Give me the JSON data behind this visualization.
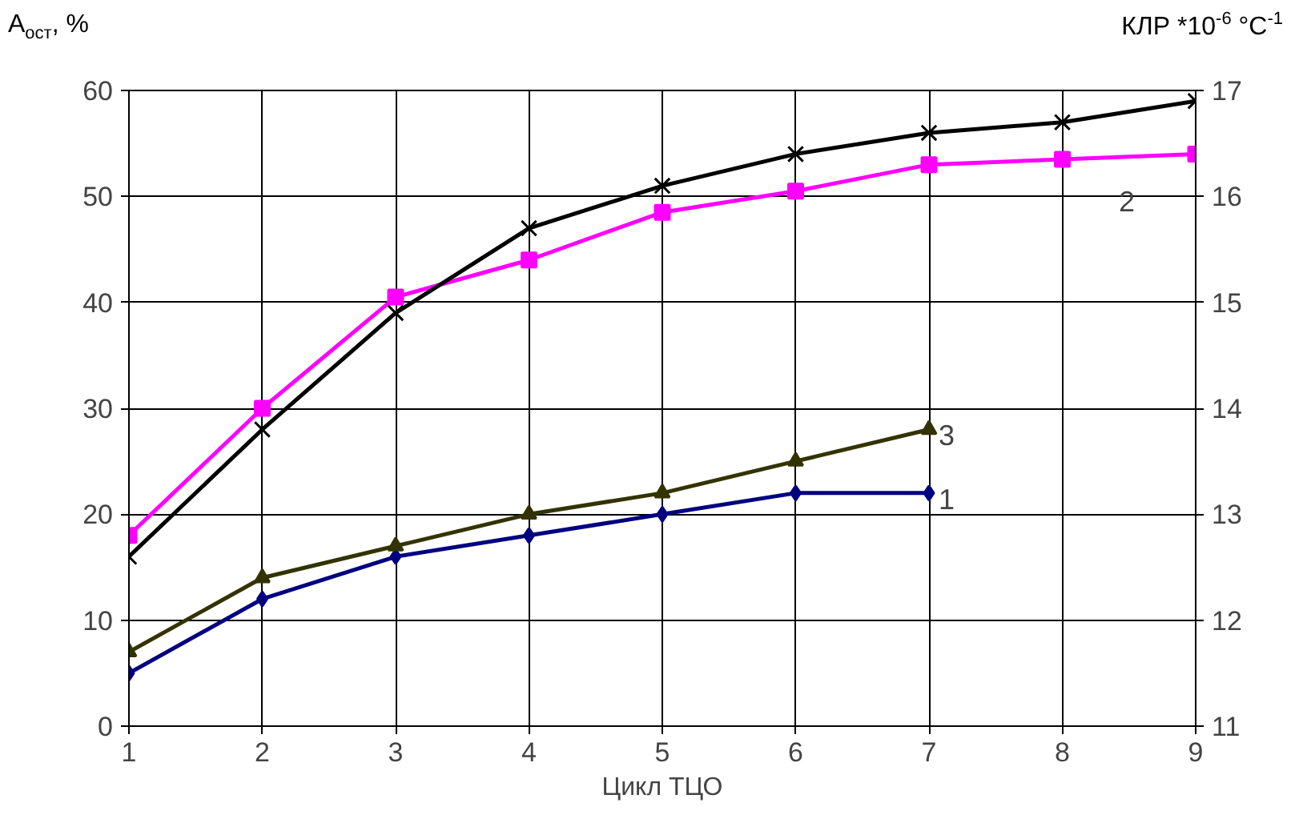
{
  "chart_data": {
    "type": "line",
    "xlabel": "Цикл ТЦО",
    "ylabel": "A$_{ост}$, %",
    "y2label": "КЛР *10$^{-6}$ °C$^{-1}$",
    "x": [
      1,
      2,
      3,
      4,
      5,
      6,
      7,
      8,
      9
    ],
    "xlim": [
      1,
      9
    ],
    "xticks": [
      1,
      2,
      3,
      4,
      5,
      6,
      7,
      8,
      9
    ],
    "ylim": [
      0,
      60
    ],
    "yticks": [
      0,
      10,
      20,
      30,
      40,
      50,
      60
    ],
    "y2lim": [
      11,
      17
    ],
    "y2ticks": [
      11,
      12,
      13,
      14,
      15,
      16,
      17
    ],
    "grid": true,
    "line_style": "solid",
    "series": [
      {
        "name": "1",
        "color": "#000080",
        "marker": "diamond",
        "values": [
          5,
          12,
          16,
          18,
          20,
          22,
          22,
          null,
          null
        ]
      },
      {
        "name": "2",
        "color": "#ff00ff",
        "marker": "square",
        "values": [
          18,
          30,
          40.5,
          44,
          48.5,
          50.5,
          53,
          53.5,
          54
        ]
      },
      {
        "name": "3",
        "color": "#333300",
        "marker": "triangle",
        "axis": "y2",
        "values": [
          11.7,
          12.4,
          12.7,
          13.0,
          13.2,
          13.5,
          13.8,
          null,
          null
        ]
      },
      {
        "name": "4",
        "color": "#000000",
        "marker": "cross",
        "axis": "y2",
        "values": [
          12.6,
          13.8,
          14.9,
          15.7,
          16.1,
          16.4,
          16.6,
          16.7,
          16.9
        ]
      }
    ]
  }
}
